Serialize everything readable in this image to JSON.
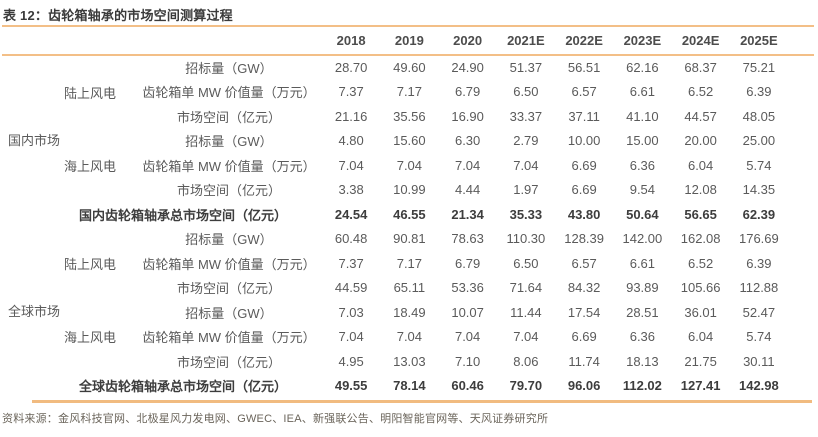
{
  "title": "表 12：齿轮箱轴承的市场空间测算过程",
  "accent_color": "#f3bf87",
  "table": {
    "years": [
      "2018",
      "2019",
      "2020",
      "2021E",
      "2022E",
      "2023E",
      "2024E",
      "2025E"
    ],
    "sections": [
      {
        "group": "国内市场",
        "subsections": [
          {
            "name": "陆上风电",
            "rows": [
              {
                "metric": "招标量（GW）",
                "values": [
                  "28.70",
                  "49.60",
                  "24.90",
                  "51.37",
                  "56.51",
                  "62.16",
                  "68.37",
                  "75.21"
                ]
              },
              {
                "metric": "齿轮箱单 MW 价值量（万元）",
                "values": [
                  "7.37",
                  "7.17",
                  "6.79",
                  "6.50",
                  "6.57",
                  "6.61",
                  "6.52",
                  "6.39"
                ]
              },
              {
                "metric": "市场空间（亿元）",
                "values": [
                  "21.16",
                  "35.56",
                  "16.90",
                  "33.37",
                  "37.11",
                  "41.10",
                  "44.57",
                  "48.05"
                ]
              }
            ]
          },
          {
            "name": "海上风电",
            "rows": [
              {
                "metric": "招标量（GW）",
                "values": [
                  "4.80",
                  "15.60",
                  "6.30",
                  "2.79",
                  "10.00",
                  "15.00",
                  "20.00",
                  "25.00"
                ]
              },
              {
                "metric": "齿轮箱单 MW 价值量（万元）",
                "values": [
                  "7.04",
                  "7.04",
                  "7.04",
                  "7.04",
                  "6.69",
                  "6.36",
                  "6.04",
                  "5.74"
                ]
              },
              {
                "metric": "市场空间（亿元）",
                "values": [
                  "3.38",
                  "10.99",
                  "4.44",
                  "1.97",
                  "6.69",
                  "9.54",
                  "12.08",
                  "14.35"
                ]
              }
            ]
          }
        ],
        "total": {
          "label": "国内齿轮箱轴承总市场空间（亿元）",
          "values": [
            "24.54",
            "46.55",
            "21.34",
            "35.33",
            "43.80",
            "50.64",
            "56.65",
            "62.39"
          ]
        }
      },
      {
        "group": "全球市场",
        "subsections": [
          {
            "name": "陆上风电",
            "rows": [
              {
                "metric": "招标量（GW）",
                "values": [
                  "60.48",
                  "90.81",
                  "78.63",
                  "110.30",
                  "128.39",
                  "142.00",
                  "162.08",
                  "176.69"
                ]
              },
              {
                "metric": "齿轮箱单 MW 价值量（万元）",
                "values": [
                  "7.37",
                  "7.17",
                  "6.79",
                  "6.50",
                  "6.57",
                  "6.61",
                  "6.52",
                  "6.39"
                ]
              },
              {
                "metric": "市场空间（亿元）",
                "values": [
                  "44.59",
                  "65.11",
                  "53.36",
                  "71.64",
                  "84.32",
                  "93.89",
                  "105.66",
                  "112.88"
                ]
              }
            ]
          },
          {
            "name": "海上风电",
            "rows": [
              {
                "metric": "招标量（GW）",
                "values": [
                  "7.03",
                  "18.49",
                  "10.07",
                  "11.44",
                  "17.54",
                  "28.51",
                  "36.01",
                  "52.47"
                ]
              },
              {
                "metric": "齿轮箱单 MW 价值量（万元）",
                "values": [
                  "7.04",
                  "7.04",
                  "7.04",
                  "7.04",
                  "6.69",
                  "6.36",
                  "6.04",
                  "5.74"
                ]
              },
              {
                "metric": "市场空间（亿元）",
                "values": [
                  "4.95",
                  "13.03",
                  "7.10",
                  "8.06",
                  "11.74",
                  "18.13",
                  "21.75",
                  "30.11"
                ]
              }
            ]
          }
        ],
        "total": {
          "label": "全球齿轮箱轴承总市场空间（亿元）",
          "values": [
            "49.55",
            "78.14",
            "60.46",
            "79.70",
            "96.06",
            "112.02",
            "127.41",
            "142.98"
          ]
        }
      }
    ]
  },
  "footer": {
    "source": "资料来源：金风科技官网、北极星风力发电网、GWEC、IEA、新强联公告、明阳智能官网等、天风证券研究所"
  }
}
